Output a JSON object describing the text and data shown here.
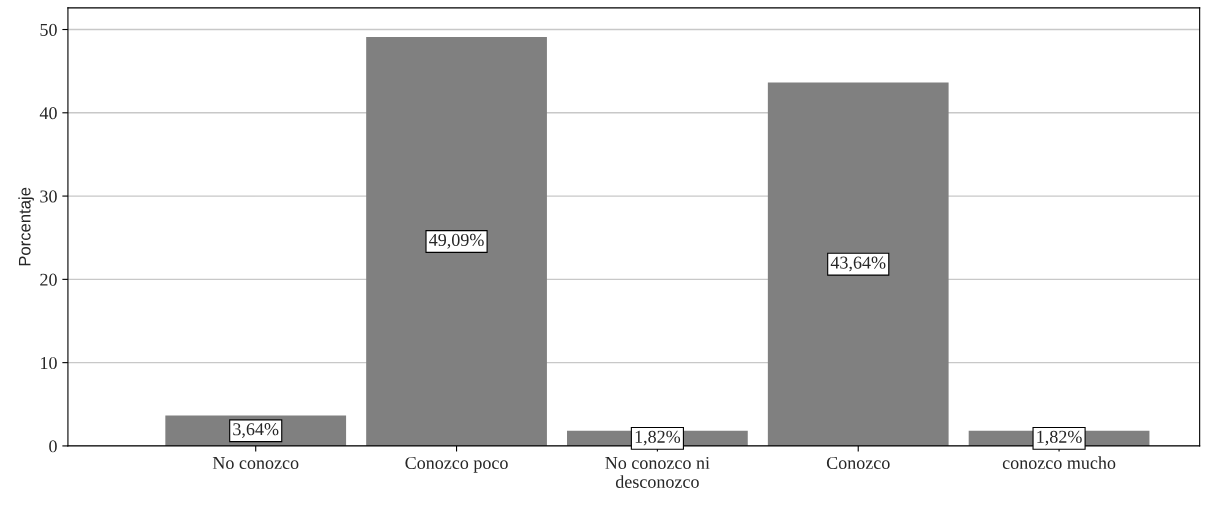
{
  "chart_data": {
    "type": "bar",
    "categories": [
      "No conozco",
      "Conozco poco",
      "No conozco ni\ndesconozco",
      "Conozco",
      "conozco mucho"
    ],
    "values": [
      3.64,
      49.09,
      1.82,
      43.64,
      1.82
    ],
    "value_labels": [
      "3,64%",
      "49,09%",
      "1,82%",
      "43,64%",
      "1,82%"
    ],
    "color": "#808080",
    "ylabel": "Porcentaje",
    "ylim": [
      0,
      52.6
    ],
    "yticks": [
      0,
      10,
      20,
      30,
      40,
      50
    ],
    "grid": "y",
    "legend": false
  }
}
